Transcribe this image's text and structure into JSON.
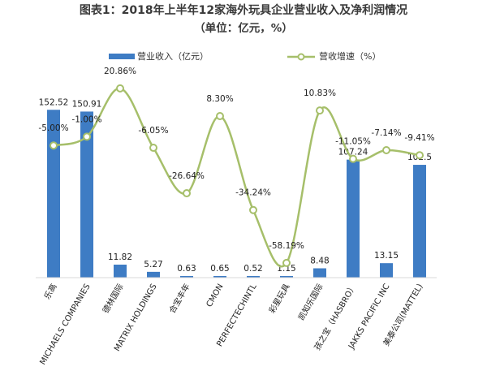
{
  "chart_data": {
    "type": "bar",
    "title": "图表1：2018年上半年12家海外玩具企业营业收入及净利润情况",
    "subtitle": "（单位：亿元，%）",
    "categories": [
      "乐高",
      "MICHAELS COMPANIES",
      "德林国际",
      "MATRIX HOLDINGS",
      "合宝丰年",
      "CMON",
      "PERFECTECHINTL",
      "彩星玩具",
      "凯知乐国际",
      "孩之宝（HASBRO）",
      "JAKKS PACIFIC INC",
      "美泰公司(MATTEL)"
    ],
    "series": [
      {
        "name": "营业收入（亿元）",
        "kind": "bar",
        "color": "#3e7cc4",
        "values": [
          152.52,
          150.91,
          11.82,
          5.27,
          0.63,
          0.65,
          0.52,
          1.15,
          8.48,
          107.24,
          13.15,
          102.5
        ],
        "labels": [
          "152.52",
          "150.91",
          "11.82",
          "5.27",
          "0.63",
          "0.65",
          "0.52",
          "1.15",
          "8.48",
          "107.24",
          "13.15",
          "102.5"
        ]
      },
      {
        "name": "营收增速（%）",
        "kind": "line",
        "color": "#a6bf6a",
        "values": [
          -5.0,
          -1.0,
          20.86,
          -6.05,
          -26.64,
          8.3,
          -34.24,
          -58.19,
          10.83,
          -11.05,
          -7.14,
          -9.41
        ],
        "labels": [
          "-5.00%",
          "-1.00%",
          "20.86%",
          "-6.05%",
          "-26.64%",
          "8.30%",
          "-34.24%",
          "-58.19%",
          "10.83%",
          "-11.05%",
          "-7.14%",
          "-9.41%"
        ]
      }
    ],
    "bar_range": [
      0,
      180
    ],
    "line_range": [
      -70,
      30
    ],
    "grid": false,
    "legend_position": "top"
  }
}
